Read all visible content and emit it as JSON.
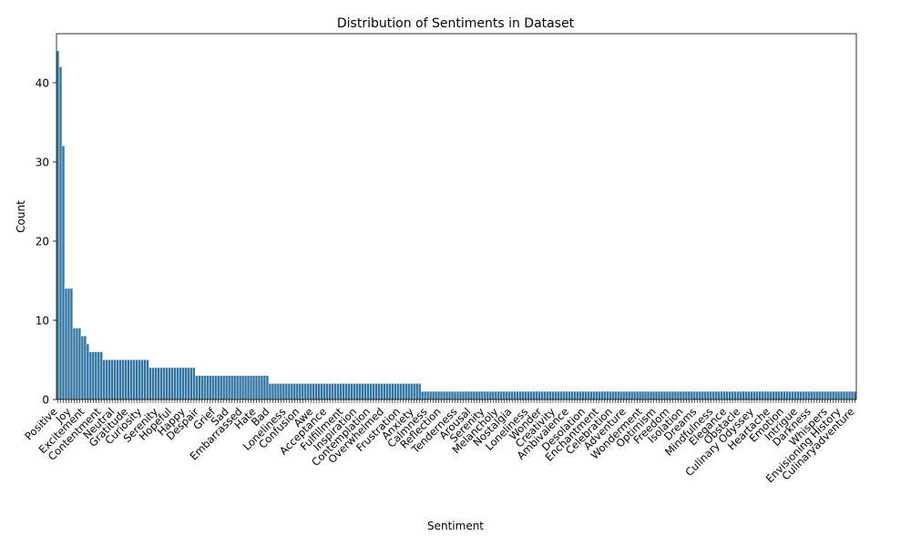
{
  "chart_data": {
    "type": "bar",
    "title": "Distribution of Sentiments in Dataset",
    "xlabel": "Sentiment",
    "ylabel": "Count",
    "ylim": [
      0,
      46.2
    ],
    "yticks": [
      0,
      10,
      20,
      30,
      40
    ],
    "grid": false,
    "bar_color": "#3274a1",
    "visible_tick_labels": [
      "Positive",
      "Joy",
      "Excitement",
      "Contentment",
      "Neutral",
      "Gratitude",
      "Curiosity",
      "Serenity",
      "Hopeful",
      "Happy",
      "Despair",
      "Grief",
      "Sad",
      "Embarrassed",
      "Hate",
      "Bad",
      "Loneliness",
      "Confusion",
      "Awe",
      "Acceptance",
      "Fulfillment",
      "Inspiration",
      "Contemplation",
      "Overwhelmed",
      "Frustration",
      "Anxiety",
      "Calmness",
      "Reflection",
      "Tenderness",
      "Arousal",
      "Serenity",
      "Melancholy",
      "Nostalgia",
      "Loneliness",
      "Wonder",
      "Creativity",
      "Ambivalence",
      "Desolation",
      "Enchantment",
      "Celebration",
      "Adventure",
      "Wonderment",
      "Optimism",
      "Freedom",
      "Isolation",
      "Dreams",
      "Mindfulness",
      "Elegance",
      "Obstacle",
      "Culinary Odyssey",
      "Heartache",
      "Emotion",
      "Intrigue",
      "Darkness",
      "Whispers",
      "Envisioning History",
      "Culinaryadventure"
    ],
    "categories_count": 279,
    "values": [
      44,
      42,
      32,
      14,
      14,
      14,
      9,
      9,
      9,
      8,
      8,
      7,
      6,
      6,
      6,
      6,
      6,
      5,
      5,
      5,
      5,
      5,
      5,
      5,
      5,
      5,
      5,
      5,
      5,
      5,
      5,
      5,
      5,
      5,
      4,
      4,
      4,
      4,
      4,
      4,
      4,
      4,
      4,
      4,
      4,
      4,
      4,
      4,
      4,
      4,
      4,
      3,
      3,
      3,
      3,
      3,
      3,
      3,
      3,
      3,
      3,
      3,
      3,
      3,
      3,
      3,
      3,
      3,
      3,
      3,
      3,
      3,
      3,
      3,
      3,
      3,
      3,
      3,
      2,
      2,
      2,
      2,
      2,
      2,
      2,
      2,
      2,
      2,
      2,
      2,
      2,
      2,
      2,
      2,
      2,
      2,
      2,
      2,
      2,
      2,
      2,
      2,
      2,
      2,
      2,
      2,
      2,
      2,
      2,
      2,
      2,
      2,
      2,
      2,
      2,
      2,
      2,
      2,
      2,
      2,
      2,
      2,
      2,
      2,
      2,
      2,
      2,
      2,
      2,
      2,
      2,
      2,
      2,
      2,
      1,
      1,
      1,
      1,
      1,
      1,
      1,
      1,
      1,
      1,
      1,
      1,
      1,
      1,
      1,
      1,
      1,
      1,
      1,
      1,
      1,
      1,
      1,
      1,
      1,
      1,
      1,
      1,
      1,
      1,
      1,
      1,
      1,
      1,
      1,
      1,
      1,
      1,
      1,
      1,
      1,
      1,
      1,
      1,
      1,
      1,
      1,
      1,
      1,
      1,
      1,
      1,
      1,
      1,
      1,
      1,
      1,
      1,
      1,
      1,
      1,
      1,
      1,
      1,
      1,
      1,
      1,
      1,
      1,
      1,
      1,
      1,
      1,
      1,
      1,
      1,
      1,
      1,
      1,
      1,
      1,
      1,
      1,
      1,
      1,
      1,
      1,
      1,
      1,
      1,
      1,
      1,
      1,
      1,
      1,
      1,
      1,
      1,
      1,
      1,
      1,
      1,
      1,
      1,
      1,
      1,
      1,
      1,
      1,
      1,
      1,
      1,
      1,
      1,
      1,
      1,
      1,
      1,
      1,
      1,
      1,
      1,
      1,
      1,
      1,
      1,
      1,
      1,
      1,
      1,
      1,
      1,
      1,
      1,
      1,
      1,
      1,
      1,
      1,
      1,
      1,
      1,
      1,
      1,
      1,
      1,
      1,
      1,
      1,
      1,
      1,
      1,
      1,
      1,
      1,
      1,
      1,
      1,
      1,
      1
    ]
  }
}
